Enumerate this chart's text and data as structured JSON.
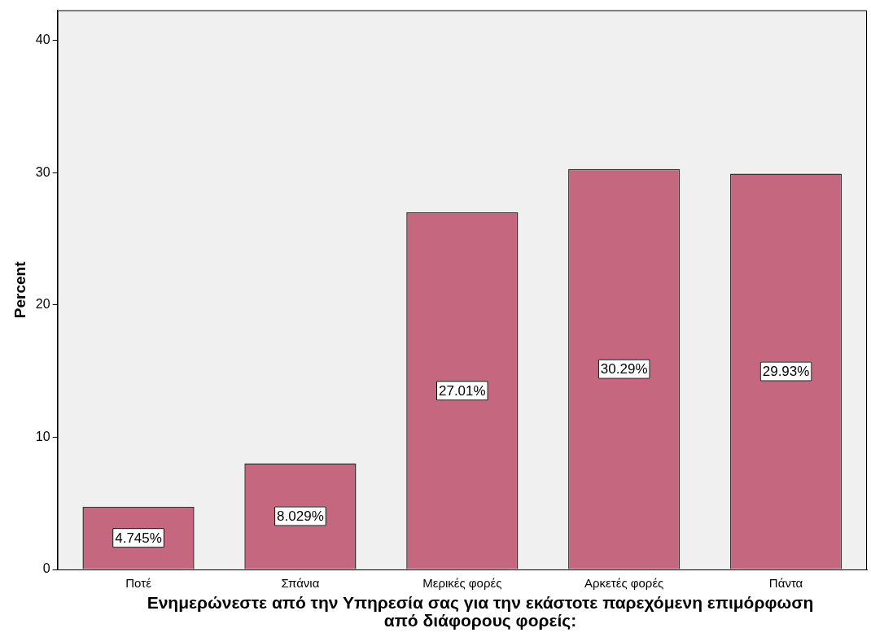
{
  "chart_data": {
    "type": "bar",
    "xlabel": "Ενημερώνεστε από την Υπηρεσία σας για την εκάστοτε παρεχόμενη επιμόρφωση από διάφορους φορείς:",
    "ylabel": "Percent",
    "categories": [
      "Ποτέ",
      "Σπάνια",
      "Μερικές φορές",
      "Αρκετές φορές",
      "Πάντα"
    ],
    "values": [
      4.745,
      8.029,
      27.01,
      30.29,
      29.93
    ],
    "value_labels": [
      "4.745%",
      "8.029%",
      "27.01%",
      "30.29%",
      "29.93%"
    ],
    "color": "#c4677f",
    "ylim": [
      0,
      42.3
    ],
    "yticks": [
      0,
      10,
      20,
      30,
      40
    ],
    "grid": false,
    "legend": false
  }
}
